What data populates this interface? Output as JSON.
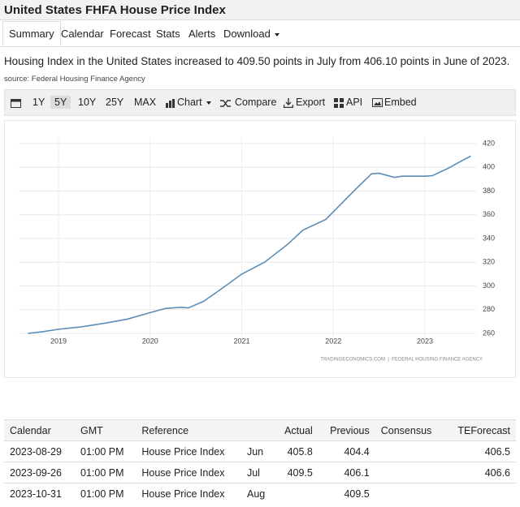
{
  "header": {
    "title": "United States FHFA House Price Index"
  },
  "tabs": [
    "Summary",
    "Calendar",
    "Forecast",
    "Stats",
    "Alerts",
    "Download"
  ],
  "summary": {
    "text": "Housing Index in the United States increased to 409.50 points in July from 406.10 points in June of 2023.",
    "source": "source: Federal Housing Finance Agency"
  },
  "toolbar": [
    "1Y",
    "5Y",
    "10Y",
    "25Y",
    "MAX",
    "Chart",
    "Compare",
    "Export",
    "API",
    "Embed"
  ],
  "chart_data": {
    "type": "line",
    "credit": "TRADINGECONOMICS.COM  |  FEDERAL HOUSING FINANCE AGENCY",
    "x": [
      2018.667,
      2018.833,
      2019.0,
      2019.25,
      2019.5,
      2019.75,
      2020.0,
      2020.167,
      2020.333,
      2020.417,
      2020.583,
      2020.75,
      2021.0,
      2021.25,
      2021.5,
      2021.667,
      2021.917,
      2022.083,
      2022.25,
      2022.417,
      2022.5,
      2022.667,
      2022.75,
      2023.0,
      2023.083,
      2023.25,
      2023.417,
      2023.5
    ],
    "series": [
      {
        "color": "#5b8db8",
        "values": [
          260,
          261.5,
          263.5,
          265.5,
          268.5,
          272,
          277.5,
          281,
          282,
          281.5,
          287,
          296,
          310,
          320,
          335,
          347,
          356,
          369,
          382,
          394.5,
          395,
          391.5,
          392.5,
          392.5,
          393,
          399,
          406.1,
          409.5
        ]
      }
    ],
    "xlim": [
      2018.565,
      2023.559
    ],
    "xticks": [
      2019,
      2020,
      2021,
      2022,
      2023
    ],
    "ylim": [
      255,
      425
    ],
    "yticks": [
      260,
      280,
      300,
      320,
      340,
      360,
      380,
      400,
      420
    ],
    "grid": true
  },
  "table": {
    "header": [
      "Calendar",
      "GMT",
      "Reference",
      "Actual",
      "Previous",
      "Consensus",
      "TEForecast"
    ],
    "rows": [
      {
        "date": "2023-08-29",
        "time": "01:00 PM",
        "reference": "House Price Index",
        "period": "Jun",
        "actual": "405.8",
        "previous": "404.4",
        "forecast": "406.5"
      },
      {
        "date": "2023-09-26",
        "time": "01:00 PM",
        "reference": "House Price Index",
        "period": "Jul",
        "actual": "409.5",
        "previous": "406.1",
        "forecast": "406.6"
      },
      {
        "date": "2023-10-31",
        "time": "01:00 PM",
        "reference": "House Price Index",
        "period": "Aug",
        "previous": "409.5"
      }
    ]
  }
}
